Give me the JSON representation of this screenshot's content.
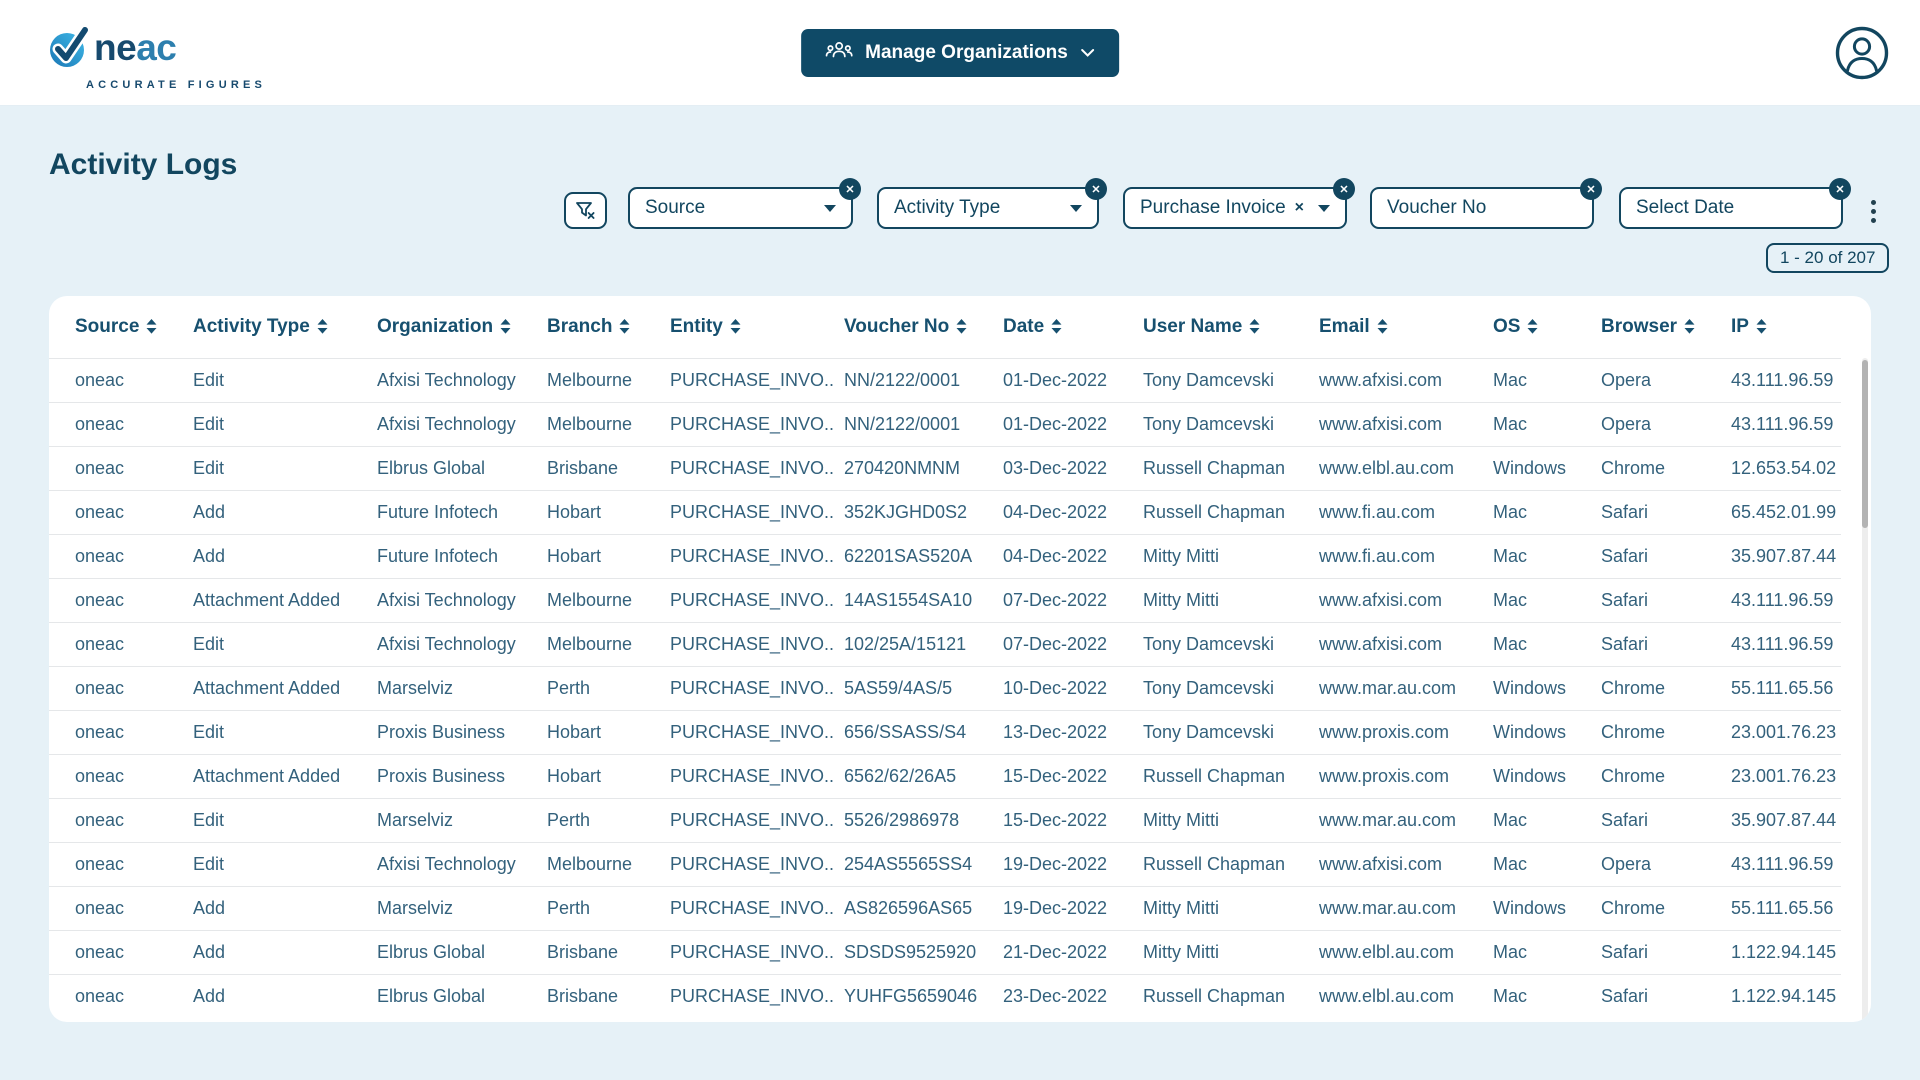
{
  "header": {
    "logo": {
      "word_dark": "ne",
      "word_blue": "ac",
      "tagline": "ACCURATE FIGURES"
    },
    "manage_button_label": "Manage Organizations"
  },
  "page": {
    "title": "Activity Logs",
    "pagination": "1 - 20 of 207"
  },
  "filters": [
    {
      "label": "Source",
      "type": "select"
    },
    {
      "label": "Activity Type",
      "type": "select"
    },
    {
      "label": "Purchase Invoice",
      "type": "select-clear"
    },
    {
      "label": "Voucher No",
      "type": "text"
    },
    {
      "label": "Select Date",
      "type": "text"
    }
  ],
  "table": {
    "columns": [
      "Source",
      "Activity Type",
      "Organization",
      "Branch",
      "Entity",
      "Voucher No",
      "Date",
      "User Name",
      "Email",
      "OS",
      "Browser",
      "IP"
    ],
    "rows": [
      [
        "oneac",
        "Edit",
        "Afxisi Technology",
        "Melbourne",
        "PURCHASE_INVO..",
        "NN/2122/0001",
        "01-Dec-2022",
        "Tony Damcevski",
        "www.afxisi.com",
        "Mac",
        "Opera",
        "43.111.96.59"
      ],
      [
        "oneac",
        "Edit",
        "Afxisi Technology",
        "Melbourne",
        "PURCHASE_INVO..",
        "NN/2122/0001",
        "01-Dec-2022",
        "Tony Damcevski",
        "www.afxisi.com",
        "Mac",
        "Opera",
        "43.111.96.59"
      ],
      [
        "oneac",
        "Edit",
        "Elbrus Global",
        "Brisbane",
        "PURCHASE_INVO..",
        "270420NMNM",
        "03-Dec-2022",
        "Russell Chapman",
        "www.elbl.au.com",
        "Windows",
        "Chrome",
        "12.653.54.02"
      ],
      [
        "oneac",
        "Add",
        "Future Infotech",
        "Hobart",
        "PURCHASE_INVO..",
        "352KJGHD0S2",
        "04-Dec-2022",
        "Russell Chapman",
        "www.fi.au.com",
        "Mac",
        "Safari",
        "65.452.01.99"
      ],
      [
        "oneac",
        "Add",
        "Future Infotech",
        "Hobart",
        "PURCHASE_INVO..",
        "62201SAS520A",
        "04-Dec-2022",
        "Mitty Mitti",
        "www.fi.au.com",
        "Mac",
        "Safari",
        "35.907.87.44"
      ],
      [
        "oneac",
        "Attachment Added",
        "Afxisi Technology",
        "Melbourne",
        "PURCHASE_INVO..",
        "14AS1554SA10",
        "07-Dec-2022",
        "Mitty Mitti",
        "www.afxisi.com",
        "Mac",
        "Safari",
        "43.111.96.59"
      ],
      [
        "oneac",
        "Edit",
        "Afxisi Technology",
        "Melbourne",
        "PURCHASE_INVO..",
        "102/25A/15121",
        "07-Dec-2022",
        "Tony Damcevski",
        "www.afxisi.com",
        "Mac",
        "Safari",
        "43.111.96.59"
      ],
      [
        "oneac",
        "Attachment Added",
        "Marselviz",
        "Perth",
        "PURCHASE_INVO..",
        "5AS59/4AS/5",
        "10-Dec-2022",
        "Tony Damcevski",
        "www.mar.au.com",
        "Windows",
        "Chrome",
        "55.111.65.56"
      ],
      [
        "oneac",
        "Edit",
        "Proxis Business",
        "Hobart",
        "PURCHASE_INVO..",
        "656/SSASS/S4",
        "13-Dec-2022",
        "Tony Damcevski",
        "www.proxis.com",
        "Windows",
        "Chrome",
        "23.001.76.23"
      ],
      [
        "oneac",
        "Attachment Added",
        "Proxis Business",
        "Hobart",
        "PURCHASE_INVO..",
        "6562/62/26A5",
        "15-Dec-2022",
        "Russell Chapman",
        "www.proxis.com",
        "Windows",
        "Chrome",
        "23.001.76.23"
      ],
      [
        "oneac",
        "Edit",
        "Marselviz",
        "Perth",
        "PURCHASE_INVO..",
        "5526/2986978",
        "15-Dec-2022",
        "Mitty Mitti",
        "www.mar.au.com",
        "Mac",
        "Safari",
        "35.907.87.44"
      ],
      [
        "oneac",
        "Edit",
        "Afxisi Technology",
        "Melbourne",
        "PURCHASE_INVO..",
        "254AS5565SS4",
        "19-Dec-2022",
        "Russell Chapman",
        "www.afxisi.com",
        "Mac",
        "Opera",
        "43.111.96.59"
      ],
      [
        "oneac",
        "Add",
        "Marselviz",
        "Perth",
        "PURCHASE_INVO..",
        "AS826596AS65",
        "19-Dec-2022",
        "Mitty Mitti",
        "www.mar.au.com",
        "Windows",
        "Chrome",
        "55.111.65.56"
      ],
      [
        "oneac",
        "Add",
        "Elbrus Global",
        "Brisbane",
        "PURCHASE_INVO..",
        "SDSDS9525920",
        "21-Dec-2022",
        "Mitty Mitti",
        "www.elbl.au.com",
        "Mac",
        "Safari",
        "1.122.94.145"
      ],
      [
        "oneac",
        "Add",
        "Elbrus Global",
        "Brisbane",
        "PURCHASE_INVO..",
        "YUHFG5659046",
        "23-Dec-2022",
        "Russell Chapman",
        "www.elbl.au.com",
        "Mac",
        "Safari",
        "1.122.94.145"
      ]
    ]
  },
  "icons": {
    "manage_button": "group-icon",
    "filter_clear_button": "filter-clear-icon",
    "more_menu": "kebab-menu-icon",
    "profile": "user-avatar-icon"
  },
  "colors": {
    "accent_navy": "#12465f",
    "button_navy": "#0f4a67",
    "content_background": "#e6f1f7",
    "header_text": "#17506f",
    "cell_text": "#33617c",
    "logo_blue": "#2d7fae",
    "logo_circle_light": "#3fb9e8",
    "logo_circle_dark": "#1b77b5"
  }
}
